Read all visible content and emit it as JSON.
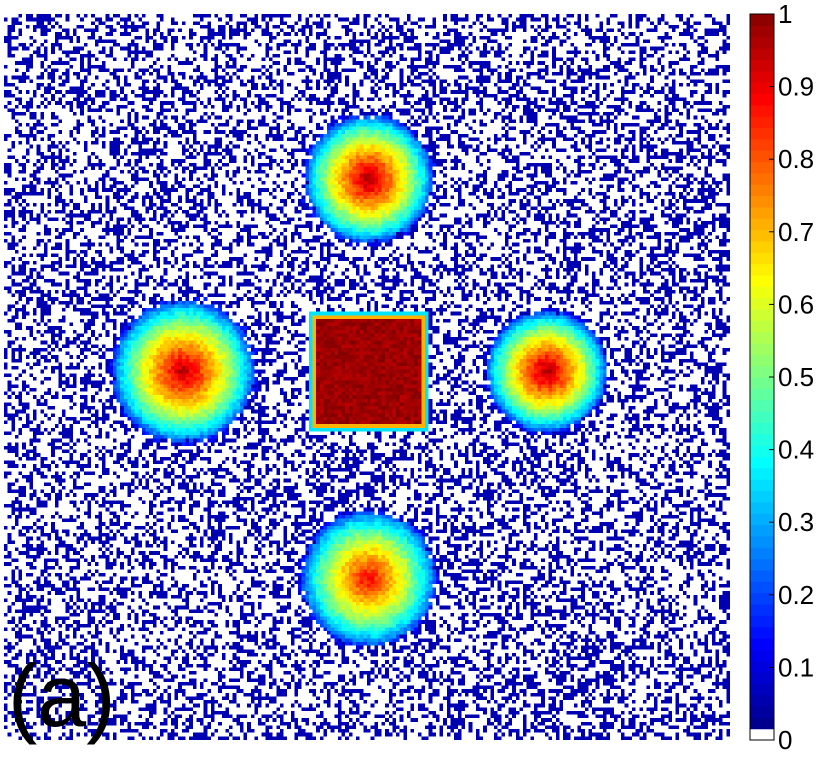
{
  "panel_label": "(a)",
  "chart_data": {
    "type": "heatmap",
    "title": "",
    "xlabel": "",
    "ylabel": "",
    "grid": false,
    "colormap": "jet",
    "zero_color": "#ffffff",
    "colorbar": {
      "position": "right",
      "range": [
        0,
        1
      ],
      "ticks": [
        {
          "value": 0,
          "label": "0"
        },
        {
          "value": 0.1,
          "label": "0.1"
        },
        {
          "value": 0.2,
          "label": "0.2"
        },
        {
          "value": 0.3,
          "label": "0.3"
        },
        {
          "value": 0.4,
          "label": "0.4"
        },
        {
          "value": 0.5,
          "label": "0.5"
        },
        {
          "value": 0.6,
          "label": "0.6"
        },
        {
          "value": 0.7,
          "label": "0.7"
        },
        {
          "value": 0.8,
          "label": "0.8"
        },
        {
          "value": 0.9,
          "label": "0.9"
        },
        {
          "value": 1,
          "label": "1"
        }
      ]
    },
    "grid_size": [
      200,
      200
    ],
    "background": {
      "value": 0.05,
      "fill_fraction": 0.4
    },
    "features": [
      {
        "shape": "disk",
        "name": "top",
        "center": [
          100,
          45
        ],
        "radius": 18,
        "peak": 0.97
      },
      {
        "shape": "disk",
        "name": "left",
        "center": [
          49,
          98
        ],
        "radius": 20,
        "peak": 0.95
      },
      {
        "shape": "disk",
        "name": "right",
        "center": [
          149,
          98
        ],
        "radius": 17,
        "peak": 0.97
      },
      {
        "shape": "disk",
        "name": "bottom",
        "center": [
          100,
          155
        ],
        "radius": 19,
        "peak": 0.88
      },
      {
        "shape": "square",
        "name": "center",
        "center": [
          100,
          98
        ],
        "half_width": 16,
        "peak": 1.0
      }
    ]
  }
}
